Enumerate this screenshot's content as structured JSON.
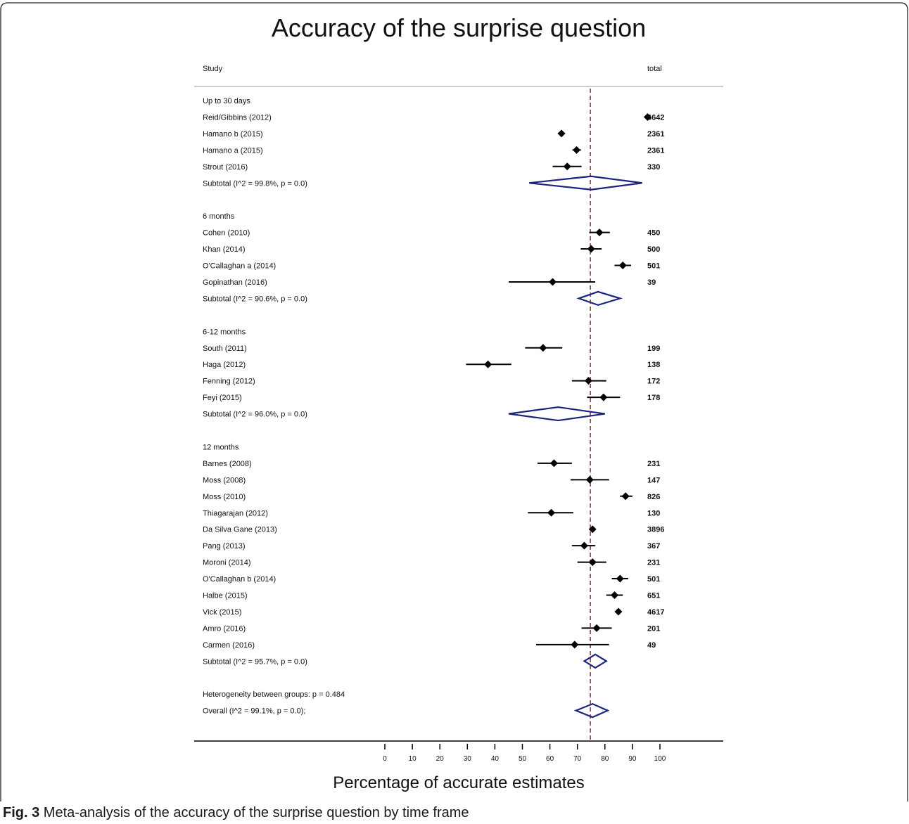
{
  "caption": {
    "label": "Fig. 3",
    "text": "Meta-analysis of the accuracy of the surprise question by time frame"
  },
  "colors": {
    "frame": "#222222",
    "study_marker": "#000000",
    "diamond": "#1a237e",
    "reference_line": "#8b2a2a",
    "rule": "#bbbbbb"
  },
  "chart_data": {
    "type": "forest",
    "title": "Accuracy of the surprise question",
    "xlabel": "Percentage of accurate estimates",
    "xlim": [
      0,
      100
    ],
    "xticks": [
      0,
      10,
      20,
      30,
      40,
      50,
      60,
      70,
      80,
      90,
      100
    ],
    "column_headers": {
      "study": "Study",
      "total": "total"
    },
    "reference_line": 74.7,
    "groups": [
      {
        "name": "Up to 30 days",
        "studies": [
          {
            "label": "Reid/Gibbins  (2012)",
            "est": 95.5,
            "lo": 95.2,
            "hi": 95.8,
            "total": "6642"
          },
          {
            "label": "Hamano b  (2015)",
            "est": 64.2,
            "lo": 62.9,
            "hi": 65.5,
            "total": "2361"
          },
          {
            "label": "Hamano a  (2015)",
            "est": 69.7,
            "lo": 68.2,
            "hi": 71.3,
            "total": "2361"
          },
          {
            "label": "Strout  (2016)",
            "est": 66.3,
            "lo": 61.0,
            "hi": 71.5,
            "total": "330"
          }
        ],
        "subtotal": {
          "label": "Subtotal  (I^2 = 99.8%, p = 0.0)",
          "est": 75.0,
          "lo": 52.5,
          "hi": 93.5
        }
      },
      {
        "name": "6 months",
        "studies": [
          {
            "label": "Cohen  (2010)",
            "est": 78.0,
            "lo": 74.3,
            "hi": 81.8,
            "total": "450"
          },
          {
            "label": "Khan (2014)",
            "est": 75.0,
            "lo": 71.2,
            "hi": 78.8,
            "total": "500"
          },
          {
            "label": "O'Callaghan a (2014)",
            "est": 86.5,
            "lo": 83.5,
            "hi": 89.5,
            "total": "501"
          },
          {
            "label": "Gopinathan  (2016)",
            "est": 61.0,
            "lo": 45.0,
            "hi": 76.5,
            "total": "39"
          }
        ],
        "subtotal": {
          "label": "Subtotal  (I^2 = 90.6%, p = 0.0)",
          "est": 77.5,
          "lo": 70.5,
          "hi": 85.5
        }
      },
      {
        "name": "6-12 months",
        "studies": [
          {
            "label": "South  (2011)",
            "est": 57.5,
            "lo": 51.0,
            "hi": 64.5,
            "total": "199"
          },
          {
            "label": "Haga  (2012)",
            "est": 37.5,
            "lo": 29.5,
            "hi": 46.0,
            "total": "138"
          },
          {
            "label": "Fenning (2012)",
            "est": 74.0,
            "lo": 68.0,
            "hi": 80.5,
            "total": "172"
          },
          {
            "label": "Feyi (2015)",
            "est": 79.5,
            "lo": 73.5,
            "hi": 85.5,
            "total": "178"
          }
        ],
        "subtotal": {
          "label": "Subtotal  (I^2 = 96.0%, p = 0.0)",
          "est": 63.0,
          "lo": 45.0,
          "hi": 80.0
        }
      },
      {
        "name": "12 months",
        "studies": [
          {
            "label": "Barnes (2008)",
            "est": 61.5,
            "lo": 55.5,
            "hi": 68.0,
            "total": "231"
          },
          {
            "label": "Moss (2008)",
            "est": 74.5,
            "lo": 67.5,
            "hi": 81.5,
            "total": "147"
          },
          {
            "label": "Moss  (2010)",
            "est": 87.5,
            "lo": 85.5,
            "hi": 90.0,
            "total": "826"
          },
          {
            "label": "Thiagarajan  (2012)",
            "est": 60.5,
            "lo": 52.0,
            "hi": 68.5,
            "total": "130"
          },
          {
            "label": "Da Silva Gane  (2013)",
            "est": 75.5,
            "lo": 74.4,
            "hi": 76.6,
            "total": "3896"
          },
          {
            "label": "Pang  (2013)",
            "est": 72.5,
            "lo": 68.0,
            "hi": 76.5,
            "total": "367"
          },
          {
            "label": "Moroni  (2014)",
            "est": 75.5,
            "lo": 70.0,
            "hi": 80.5,
            "total": "231"
          },
          {
            "label": "O'Callaghan b (2014)",
            "est": 85.5,
            "lo": 82.5,
            "hi": 88.5,
            "total": "501"
          },
          {
            "label": "Halbe  (2015)",
            "est": 83.5,
            "lo": 80.5,
            "hi": 86.5,
            "total": "651"
          },
          {
            "label": "Vick (2015)",
            "est": 84.9,
            "lo": 83.9,
            "hi": 85.9,
            "total": "4617"
          },
          {
            "label": "Amro (2016)",
            "est": 77.0,
            "lo": 71.5,
            "hi": 82.5,
            "total": "201"
          },
          {
            "label": "Carmen (2016)",
            "est": 69.0,
            "lo": 55.0,
            "hi": 81.5,
            "total": "49"
          }
        ],
        "subtotal": {
          "label": "Subtotal  (I^2 = 95.7%, p = 0.0)",
          "est": 76.5,
          "lo": 72.5,
          "hi": 80.5
        }
      }
    ],
    "heterogeneity": "Heterogeneity between groups: p = 0.484",
    "overall": {
      "label": "Overall  (I^2 = 99.1%, p = 0.0);",
      "est": 75.5,
      "lo": 69.5,
      "hi": 81.0
    }
  }
}
